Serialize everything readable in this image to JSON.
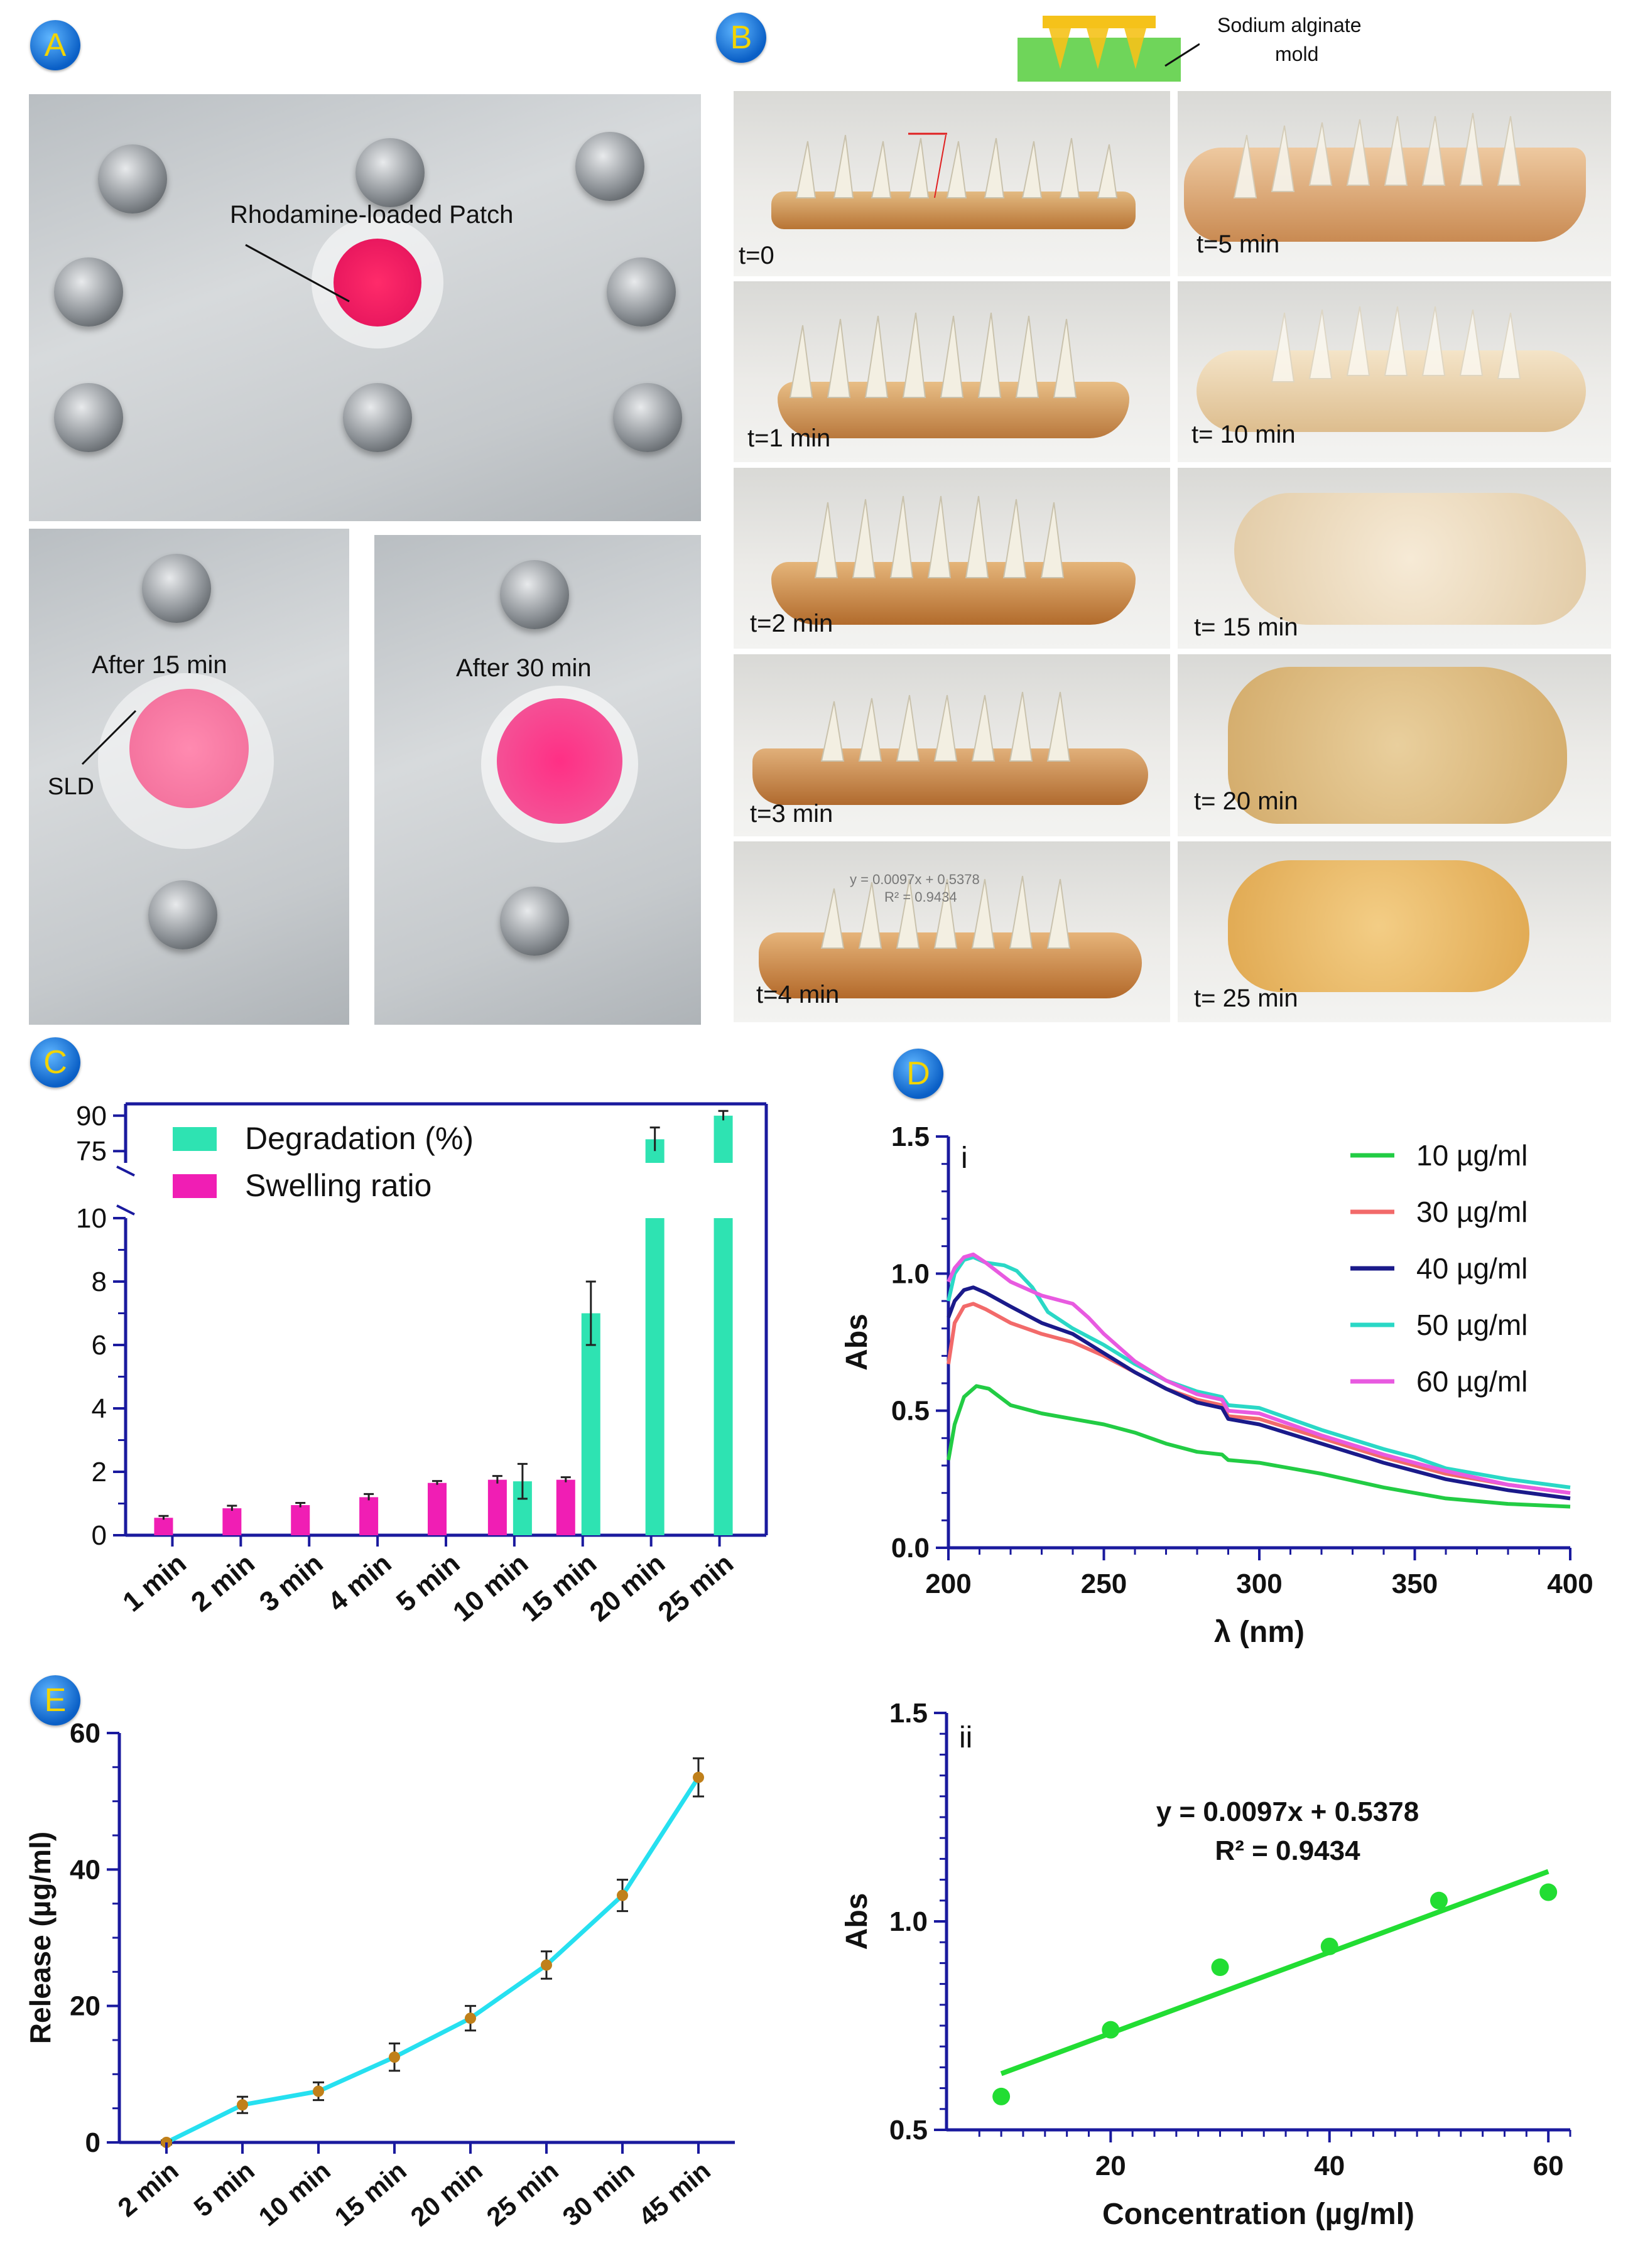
{
  "figure": {
    "panels": {
      "A": {
        "badge": "A",
        "top_label": "Rhodamine-loaded Patch",
        "bottom_left_label": "After 15 min",
        "bottom_left_annotation": "SLD",
        "bottom_right_label": "After 30 min"
      },
      "B": {
        "badge": "B",
        "mold_label_line1": "Sodium alginate",
        "mold_label_line2": "mold",
        "inset_line1": "y = 0.0097x + 0.5378",
        "inset_line2": "R² = 0.9434",
        "time_labels": [
          "t=0",
          "t=5 min",
          "t=1 min",
          "t= 10 min",
          "t=2 min",
          "t= 15 min",
          "t=3 min",
          "t= 20 min",
          "t=4 min",
          "t= 25 min"
        ]
      },
      "C": {
        "badge": "C"
      },
      "D": {
        "badge": "D"
      },
      "E": {
        "badge": "E"
      }
    },
    "colors": {
      "axis": "#1a1a9e",
      "degradation": "#2ee3b2",
      "swelling": "#f01eb4",
      "release_line": "#26e0f0",
      "release_marker": "#c0801a",
      "fit_line": "#22dd33"
    }
  },
  "chart_data": [
    {
      "id": "C",
      "type": "bar",
      "categories": [
        "1 min",
        "2 min",
        "3 min",
        "4 min",
        "5 min",
        "10 min",
        "15 min",
        "20 min",
        "25 min"
      ],
      "series": [
        {
          "name": "Swelling ratio",
          "values": [
            0.55,
            0.85,
            0.95,
            1.2,
            1.65,
            1.75,
            1.75,
            null,
            null
          ],
          "errors": [
            0.06,
            0.08,
            0.07,
            0.1,
            0.06,
            0.12,
            0.08,
            null,
            null
          ]
        },
        {
          "name": "Degradation (%)",
          "values": [
            null,
            null,
            null,
            null,
            null,
            1.7,
            7.0,
            80,
            90
          ],
          "errors": [
            null,
            null,
            null,
            null,
            null,
            0.55,
            1.0,
            5,
            2
          ]
        }
      ],
      "yticks_lower": [
        "0",
        "2",
        "4",
        "6",
        "8",
        "10"
      ],
      "yticks_upper": [
        "75",
        "90"
      ],
      "ylim_lower": [
        0,
        10
      ],
      "ylim_upper": [
        70,
        95
      ],
      "legend_position": "top-left"
    },
    {
      "id": "D",
      "type": "line",
      "panel_label": "i",
      "xlabel": "λ (nm)",
      "ylabel": "Abs",
      "xlim": [
        200,
        400
      ],
      "ylim": [
        0,
        1.5
      ],
      "xticks": [
        "200",
        "250",
        "300",
        "350",
        "400"
      ],
      "yticks": [
        "0.0",
        "0.5",
        "1.0",
        "1.5"
      ],
      "series": [
        {
          "name": "10 µg/ml",
          "color": "#22cc44",
          "points": [
            [
              200,
              0.32
            ],
            [
              202,
              0.45
            ],
            [
              205,
              0.55
            ],
            [
              209,
              0.59
            ],
            [
              213,
              0.58
            ],
            [
              220,
              0.52
            ],
            [
              230,
              0.49
            ],
            [
              240,
              0.47
            ],
            [
              250,
              0.45
            ],
            [
              260,
              0.42
            ],
            [
              270,
              0.38
            ],
            [
              280,
              0.35
            ],
            [
              288,
              0.34
            ],
            [
              290,
              0.32
            ],
            [
              300,
              0.31
            ],
            [
              320,
              0.27
            ],
            [
              340,
              0.22
            ],
            [
              350,
              0.2
            ],
            [
              360,
              0.18
            ],
            [
              380,
              0.16
            ],
            [
              400,
              0.15
            ]
          ]
        },
        {
          "name": "30 µg/ml",
          "color": "#f26a6a",
          "points": [
            [
              200,
              0.67
            ],
            [
              202,
              0.82
            ],
            [
              205,
              0.88
            ],
            [
              208,
              0.89
            ],
            [
              212,
              0.87
            ],
            [
              220,
              0.82
            ],
            [
              230,
              0.78
            ],
            [
              240,
              0.75
            ],
            [
              250,
              0.7
            ],
            [
              260,
              0.64
            ],
            [
              270,
              0.58
            ],
            [
              280,
              0.54
            ],
            [
              288,
              0.52
            ],
            [
              290,
              0.48
            ],
            [
              300,
              0.47
            ],
            [
              320,
              0.4
            ],
            [
              340,
              0.33
            ],
            [
              350,
              0.3
            ],
            [
              360,
              0.27
            ],
            [
              380,
              0.23
            ],
            [
              400,
              0.2
            ]
          ]
        },
        {
          "name": "40 µg/ml",
          "color": "#1a1a8a",
          "points": [
            [
              200,
              0.84
            ],
            [
              202,
              0.9
            ],
            [
              205,
              0.94
            ],
            [
              208,
              0.95
            ],
            [
              212,
              0.93
            ],
            [
              220,
              0.88
            ],
            [
              230,
              0.82
            ],
            [
              240,
              0.78
            ],
            [
              250,
              0.71
            ],
            [
              260,
              0.64
            ],
            [
              270,
              0.58
            ],
            [
              280,
              0.53
            ],
            [
              288,
              0.51
            ],
            [
              290,
              0.47
            ],
            [
              300,
              0.45
            ],
            [
              320,
              0.38
            ],
            [
              340,
              0.31
            ],
            [
              350,
              0.28
            ],
            [
              360,
              0.25
            ],
            [
              380,
              0.21
            ],
            [
              400,
              0.18
            ]
          ]
        },
        {
          "name": "50 µg/ml",
          "color": "#2ad8c6",
          "points": [
            [
              200,
              0.9
            ],
            [
              202,
              1.0
            ],
            [
              205,
              1.05
            ],
            [
              208,
              1.06
            ],
            [
              212,
              1.04
            ],
            [
              218,
              1.03
            ],
            [
              222,
              1.01
            ],
            [
              227,
              0.95
            ],
            [
              232,
              0.86
            ],
            [
              240,
              0.8
            ],
            [
              250,
              0.74
            ],
            [
              260,
              0.67
            ],
            [
              270,
              0.61
            ],
            [
              280,
              0.57
            ],
            [
              288,
              0.55
            ],
            [
              290,
              0.52
            ],
            [
              300,
              0.51
            ],
            [
              320,
              0.43
            ],
            [
              340,
              0.36
            ],
            [
              350,
              0.33
            ],
            [
              360,
              0.29
            ],
            [
              380,
              0.25
            ],
            [
              400,
              0.22
            ]
          ]
        },
        {
          "name": "60 µg/ml",
          "color": "#e85ae0",
          "points": [
            [
              200,
              0.97
            ],
            [
              202,
              1.02
            ],
            [
              205,
              1.06
            ],
            [
              208,
              1.07
            ],
            [
              212,
              1.04
            ],
            [
              220,
              0.97
            ],
            [
              230,
              0.92
            ],
            [
              240,
              0.89
            ],
            [
              245,
              0.84
            ],
            [
              250,
              0.78
            ],
            [
              260,
              0.68
            ],
            [
              270,
              0.61
            ],
            [
              280,
              0.56
            ],
            [
              288,
              0.54
            ],
            [
              290,
              0.5
            ],
            [
              300,
              0.49
            ],
            [
              320,
              0.41
            ],
            [
              340,
              0.34
            ],
            [
              350,
              0.31
            ],
            [
              360,
              0.28
            ],
            [
              380,
              0.23
            ],
            [
              400,
              0.2
            ]
          ]
        }
      ],
      "legend_position": "top-right"
    },
    {
      "id": "E",
      "type": "line",
      "ylabel": "Release (µg/ml)",
      "categories": [
        "2 min",
        "5 min",
        "10 min",
        "15 min",
        "20 min",
        "25 min",
        "30 min",
        "45 min"
      ],
      "values": [
        0,
        5.5,
        7.5,
        12.5,
        18.2,
        26,
        36.2,
        53.5
      ],
      "errors": [
        0.3,
        1.2,
        1.3,
        2.0,
        1.8,
        2.0,
        2.3,
        2.8
      ],
      "ylim": [
        0,
        60
      ],
      "yticks": [
        "0",
        "20",
        "40",
        "60"
      ]
    },
    {
      "id": "Dii",
      "type": "scatter",
      "panel_label": "ii",
      "xlabel": "Concentration (µg/ml)",
      "ylabel": "Abs",
      "xlim": [
        5,
        62
      ],
      "ylim": [
        0.5,
        1.5
      ],
      "xticks": [
        "20",
        "40",
        "60"
      ],
      "yticks": [
        "0.5",
        "1.0",
        "1.5"
      ],
      "x": [
        10,
        20,
        30,
        40,
        50,
        60
      ],
      "y": [
        0.58,
        0.74,
        0.89,
        0.94,
        1.05,
        1.07
      ],
      "fit": {
        "slope": 0.0097,
        "intercept": 0.5378,
        "x_range": [
          10,
          60
        ]
      },
      "equation": "y = 0.0097x + 0.5378",
      "r_squared": "R² = 0.9434"
    }
  ]
}
